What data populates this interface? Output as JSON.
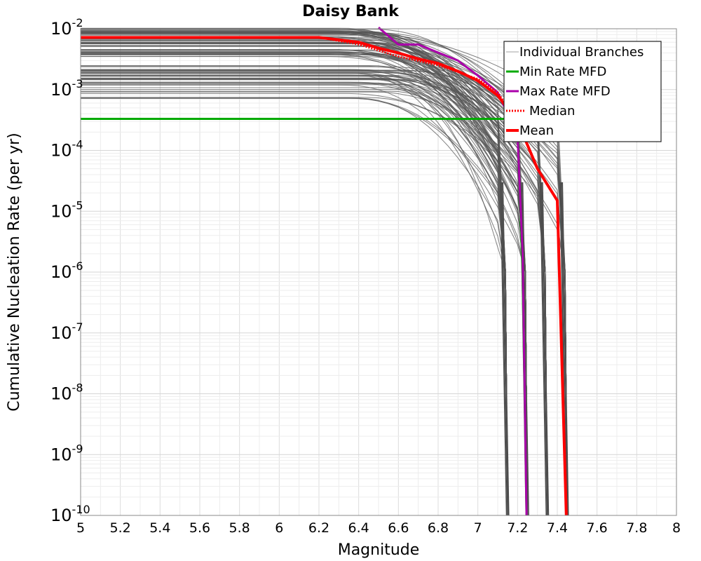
{
  "chart_data": {
    "type": "line",
    "title": "Daisy Bank",
    "xlabel": "Magnitude",
    "ylabel": "Cumulative Nucleation Rate (per yr)",
    "xlim": [
      5,
      8
    ],
    "ylim": [
      1e-10,
      0.01
    ],
    "yscale": "log",
    "grid": true,
    "legend_position": "top-right",
    "x_ticks": [
      "5",
      "5.2",
      "5.4",
      "5.6",
      "5.8",
      "6",
      "6.2",
      "6.4",
      "6.6",
      "6.8",
      "7",
      "7.2",
      "7.4",
      "7.6",
      "7.8",
      "8"
    ],
    "y_ticks": [
      {
        "base": "10",
        "exp": "-2"
      },
      {
        "base": "10",
        "exp": "-3"
      },
      {
        "base": "10",
        "exp": "-4"
      },
      {
        "base": "10",
        "exp": "-5"
      },
      {
        "base": "10",
        "exp": "-6"
      },
      {
        "base": "10",
        "exp": "-7"
      },
      {
        "base": "10",
        "exp": "-8"
      },
      {
        "base": "10",
        "exp": "-9"
      },
      {
        "base": "10",
        "exp": "-10"
      }
    ],
    "series": [
      {
        "name": "Individual Branches",
        "color": "#555555",
        "style": "many thin grey branch curves",
        "upper_band_rate_range": [
          0.0035,
          0.0105
        ],
        "lower_band_rate_range": [
          0.0007,
          0.0025
        ],
        "cutoff_magnitudes": [
          7.15,
          7.25,
          7.35,
          7.45
        ]
      },
      {
        "name": "Min Rate MFD",
        "color": "#00aa00",
        "x": [
          5.0,
          7.1,
          7.2,
          7.2,
          7.225,
          7.245
        ],
        "y": [
          0.00033,
          0.00033,
          0.00033,
          0.00025,
          1e-06,
          1e-10
        ]
      },
      {
        "name": "Max Rate MFD",
        "color": "#aa00aa",
        "x": [
          6.5,
          6.6,
          6.7,
          6.9,
          7.0,
          7.1,
          7.2,
          7.225,
          7.245
        ],
        "y": [
          0.0105,
          0.0055,
          0.0055,
          0.003,
          0.0017,
          0.0009,
          0.00018,
          2e-06,
          1e-10
        ]
      },
      {
        "name": "Median",
        "color": "#ff0000",
        "x": [
          6.2,
          6.4,
          6.6,
          6.8,
          7.0,
          7.1,
          7.2,
          7.3,
          7.4,
          7.445
        ],
        "y": [
          0.0072,
          0.0055,
          0.0035,
          0.0025,
          0.0015,
          0.0009,
          0.0003,
          5e-05,
          1.5e-05,
          1e-10
        ]
      },
      {
        "name": "Mean",
        "color": "#ff0000",
        "x": [
          5.0,
          6.2,
          6.4,
          6.5,
          6.6,
          6.7,
          6.8,
          6.9,
          7.0,
          7.1,
          7.2,
          7.3,
          7.4,
          7.445
        ],
        "y": [
          0.0072,
          0.0072,
          0.006,
          0.0048,
          0.004,
          0.0032,
          0.0027,
          0.002,
          0.0014,
          0.0008,
          0.0003,
          5e-05,
          1.5e-05,
          1e-10
        ]
      }
    ]
  }
}
